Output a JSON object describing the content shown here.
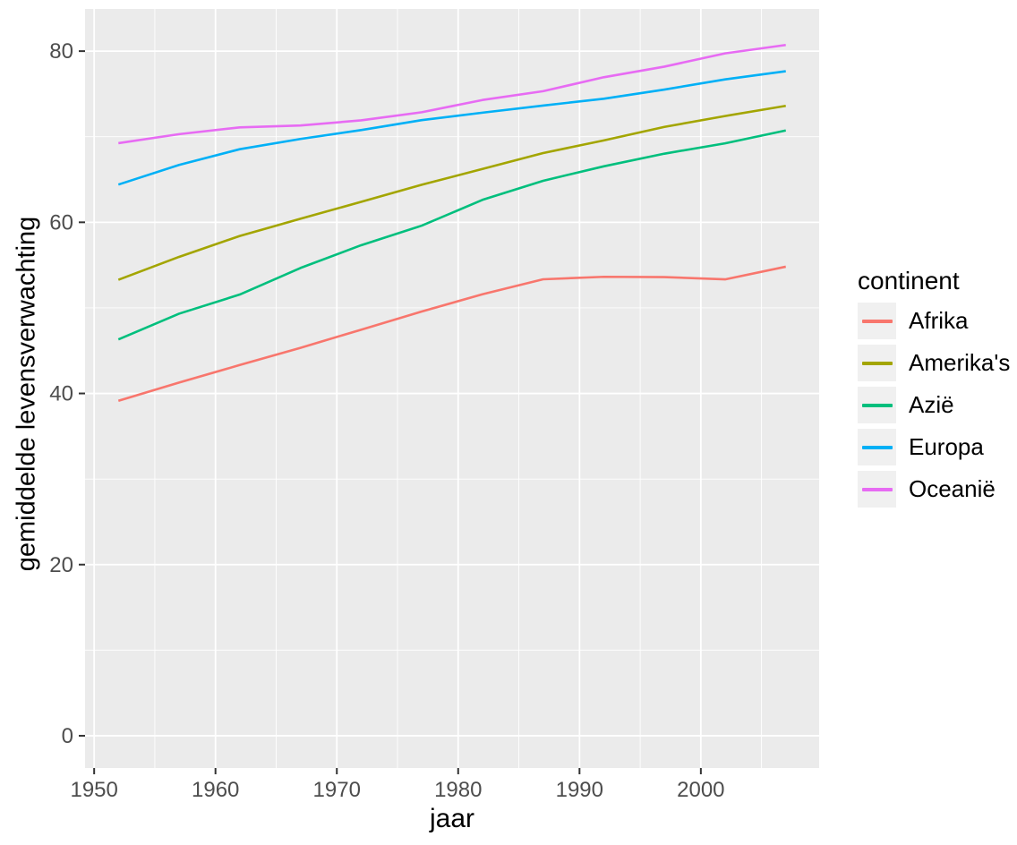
{
  "chart_data": {
    "type": "line",
    "title": "",
    "xlabel": "jaar",
    "ylabel": "gemiddelde levensverwachting",
    "x": [
      1952,
      1957,
      1962,
      1967,
      1972,
      1977,
      1982,
      1987,
      1992,
      1997,
      2002,
      2007
    ],
    "series": [
      {
        "name": "Afrika",
        "color": "#F8766D",
        "values": [
          39.14,
          41.27,
          43.32,
          45.33,
          47.45,
          49.58,
          51.59,
          53.34,
          53.63,
          53.6,
          53.33,
          54.81
        ]
      },
      {
        "name": "Amerika's",
        "color": "#A3A500",
        "values": [
          53.28,
          55.96,
          58.4,
          60.41,
          62.39,
          64.39,
          66.23,
          68.09,
          69.57,
          71.15,
          72.42,
          73.61
        ]
      },
      {
        "name": "Azië",
        "color": "#00BF7D",
        "values": [
          46.31,
          49.32,
          51.56,
          54.66,
          57.32,
          59.61,
          62.62,
          64.85,
          66.54,
          68.02,
          69.23,
          70.73
        ]
      },
      {
        "name": "Europa",
        "color": "#00B0F6",
        "values": [
          64.41,
          66.7,
          68.54,
          69.74,
          70.78,
          71.94,
          72.81,
          73.64,
          74.44,
          75.51,
          76.7,
          77.65
        ]
      },
      {
        "name": "Oceanië",
        "color": "#E76BF3",
        "values": [
          69.25,
          70.3,
          71.09,
          71.31,
          71.91,
          72.86,
          74.29,
          75.32,
          76.95,
          78.19,
          79.74,
          80.72
        ]
      }
    ],
    "legend": {
      "title": "continent",
      "position": "right"
    },
    "x_ticks": [
      1950,
      1960,
      1970,
      1980,
      1990,
      2000
    ],
    "x_minor_ticks": [
      1955,
      1965,
      1975,
      1985,
      1995,
      2005
    ],
    "y_ticks": [
      0,
      20,
      40,
      60,
      80
    ],
    "y_minor_ticks": [
      10,
      30,
      50,
      70
    ],
    "xlim": [
      1949.25,
      2009.75
    ],
    "ylim": [
      -3.77,
      84.93
    ],
    "grid": true,
    "colors": {
      "panel_bg": "#EBEBEB",
      "grid": "#FFFFFF",
      "tick_label": "#4D4D4D",
      "tick_mark": "#333333",
      "axis_title": "#000000",
      "legend_key_bg": "#F0F0F0"
    }
  }
}
